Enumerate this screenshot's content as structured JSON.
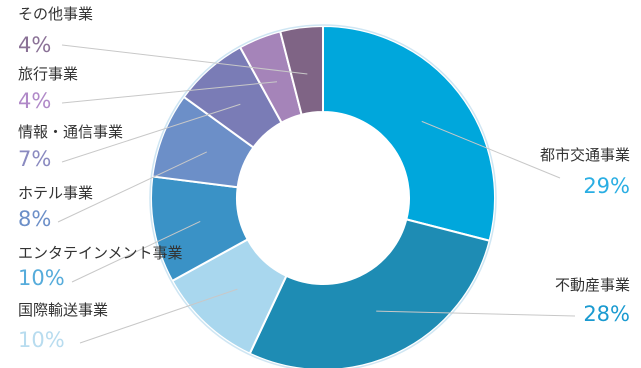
{
  "chart_data": {
    "type": "pie",
    "variant": "donut",
    "title": "",
    "categories": [
      "都市交通事業",
      "不動産事業",
      "国際輸送事業",
      "エンタテインメント事業",
      "ホテル事業",
      "情報・通信事業",
      "旅行事業",
      "その他事業"
    ],
    "values": [
      29,
      28,
      10,
      10,
      8,
      7,
      4,
      4
    ],
    "labels": [
      "29%",
      "28%",
      "10%",
      "10%",
      "8%",
      "7%",
      "4%",
      "4%"
    ],
    "colors": [
      "#00a7dc",
      "#1e8cb4",
      "#a9d7ee",
      "#3a92c6",
      "#6c8fc8",
      "#7a7cb6",
      "#a584b9",
      "#7f6485"
    ],
    "label_colors": [
      "#2aaee3",
      "#1a9ad0",
      "#b8dcef",
      "#56acdb",
      "#6c8fc8",
      "#8a8ac0",
      "#b089c8",
      "#8a7196"
    ],
    "legend": "outside labels with leader lines"
  }
}
